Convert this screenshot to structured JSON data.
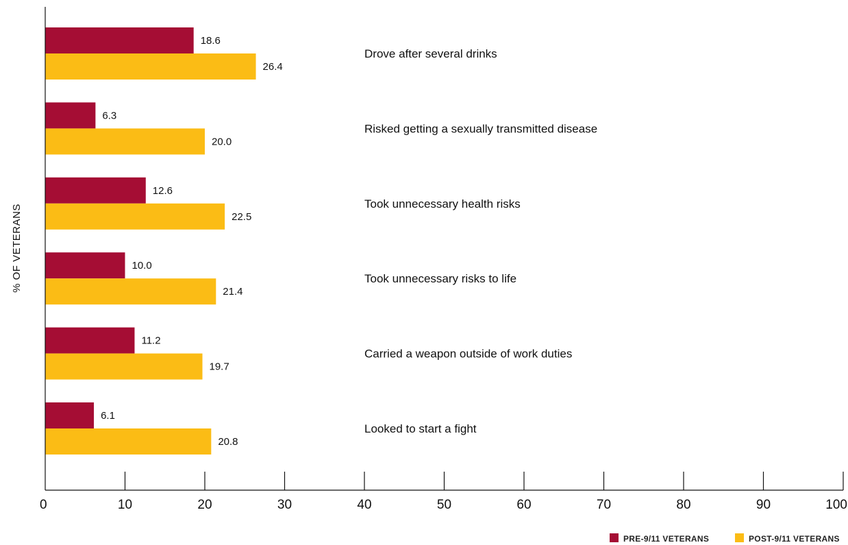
{
  "chart_data": {
    "type": "bar",
    "orientation": "horizontal",
    "ylabel": "% OF VETERANS",
    "categories": [
      "Drove after several drinks",
      "Risked getting a sexually transmitted disease",
      "Took unnecessary health risks",
      "Took unnecessary risks to life",
      "Carried a weapon outside of work duties",
      "Looked to start a fight"
    ],
    "series": [
      {
        "name": "PRE-9/11 VETERANS",
        "color": "#a50d34",
        "values": [
          18.6,
          6.3,
          12.6,
          10.0,
          11.2,
          6.1
        ],
        "labels": [
          "18.6",
          "6.3",
          "12.6",
          "10.0",
          "11.2",
          "6.1"
        ]
      },
      {
        "name": "POST-9/11 VETERANS",
        "color": "#fbbc15",
        "values": [
          26.4,
          20.0,
          22.5,
          21.4,
          19.7,
          20.8
        ],
        "labels": [
          "26.4",
          "20.0",
          "22.5",
          "21.4",
          "19.7",
          "20.8"
        ]
      }
    ],
    "xlim": [
      0,
      100
    ],
    "xticks": [
      "0",
      "10",
      "20",
      "30",
      "40",
      "50",
      "60",
      "70",
      "80",
      "90",
      "100"
    ],
    "grid": false,
    "legend_position": "bottom-right"
  }
}
